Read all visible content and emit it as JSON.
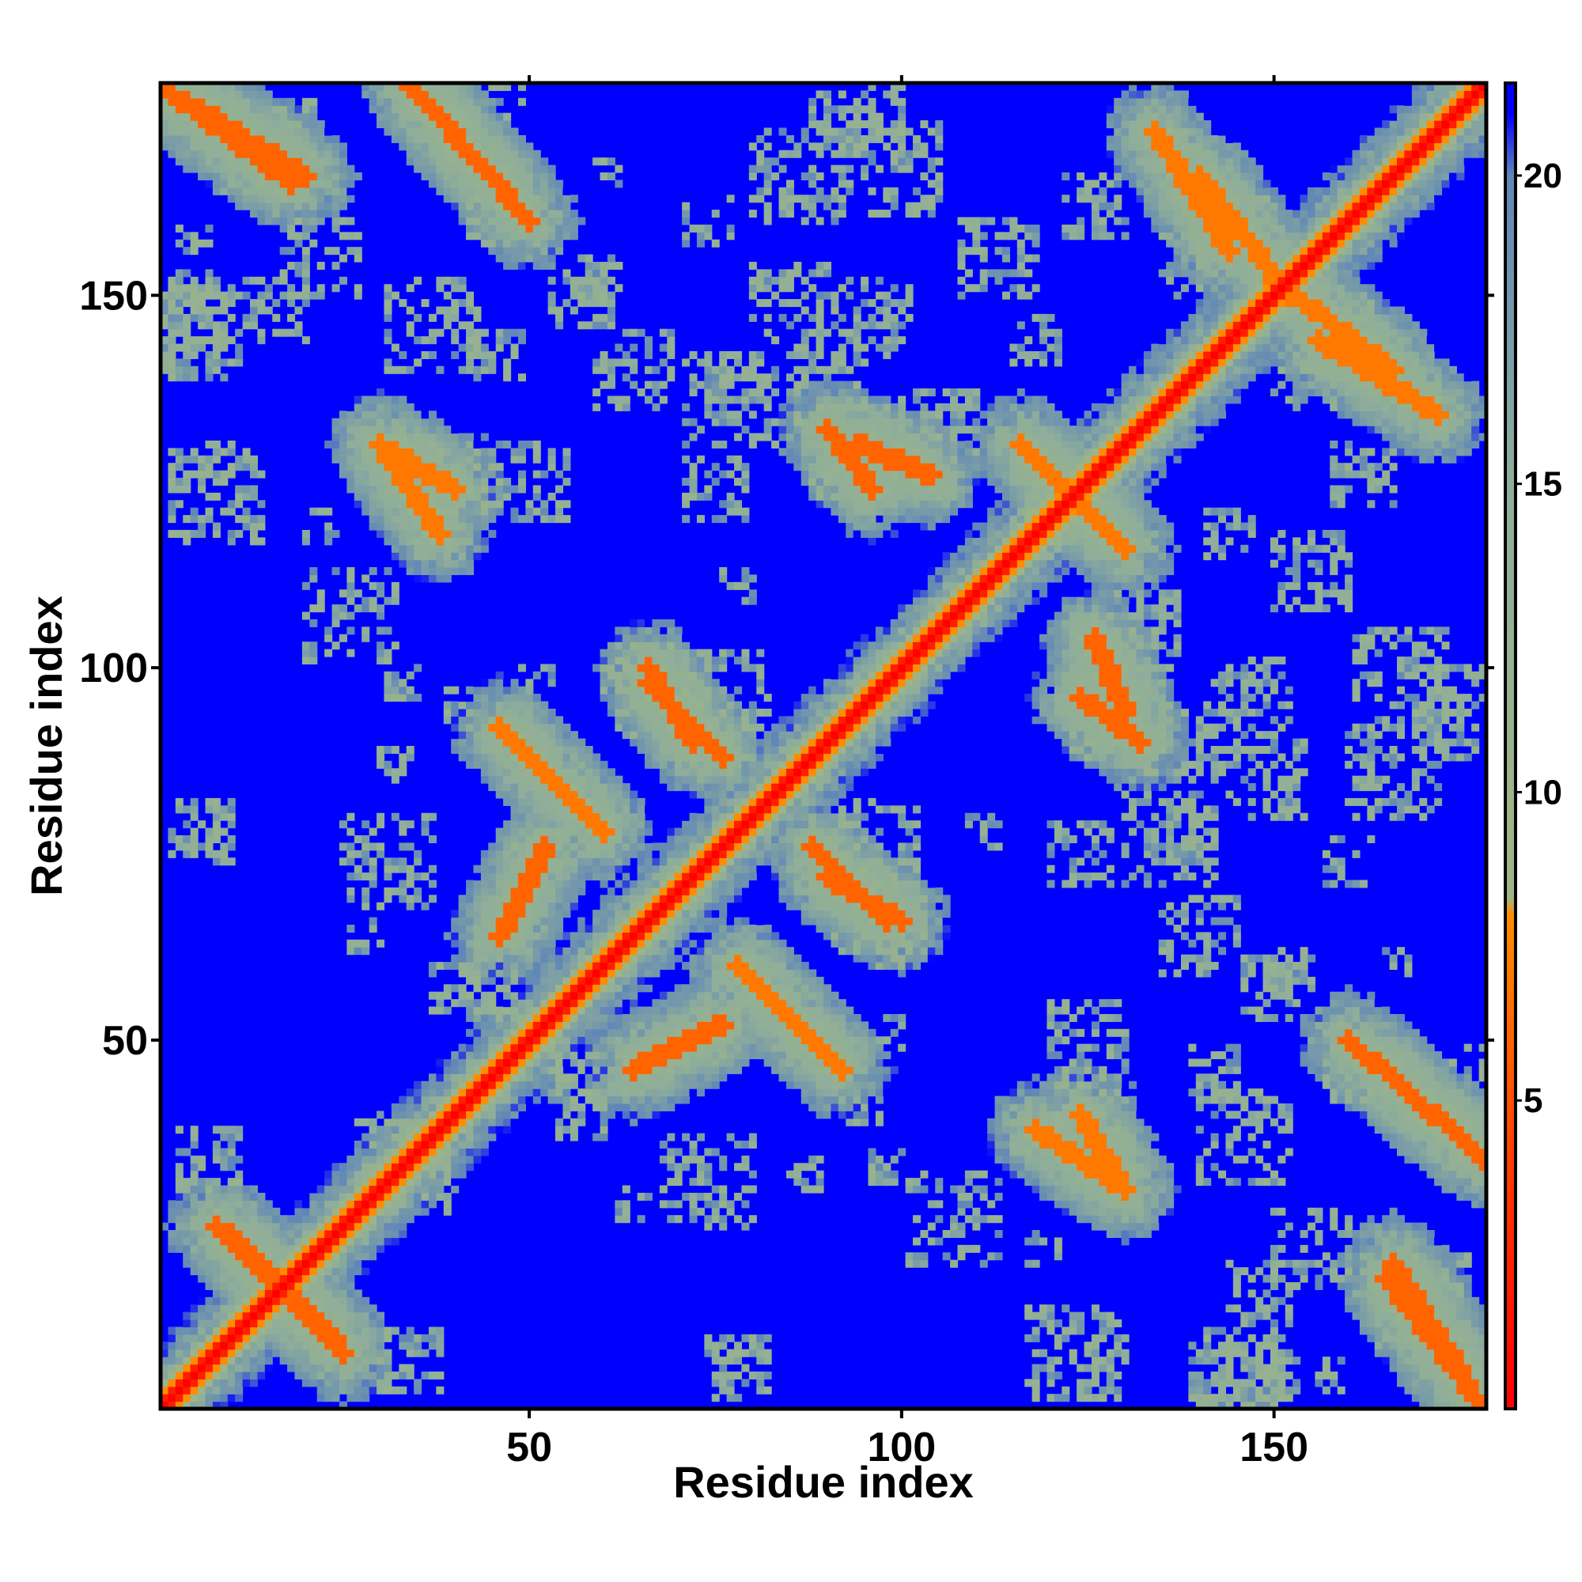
{
  "chart_data": {
    "type": "heatmap",
    "title": "",
    "xlabel": "Residue index",
    "ylabel": "Residue index",
    "n_residues": 178,
    "xlim": [
      1,
      178
    ],
    "ylim": [
      1,
      178
    ],
    "x_ticks": [
      50,
      100,
      150
    ],
    "y_ticks": [
      50,
      100,
      150
    ],
    "colorbar": {
      "range": [
        0,
        21.5
      ],
      "ticks": [
        5,
        10,
        15,
        20
      ],
      "colors": [
        {
          "at": 0,
          "color": "#ff0000"
        },
        {
          "at": 4,
          "color": "#ff3c00"
        },
        {
          "at": 8,
          "color": "#ff8c00"
        },
        {
          "at": 8.3,
          "color": "#9fb586"
        },
        {
          "at": 15,
          "color": "#8fae9a"
        },
        {
          "at": 20,
          "color": "#5f86b8"
        },
        {
          "at": 21,
          "color": "#0000ff"
        }
      ]
    },
    "background_value": 21.5,
    "diagonal_value": 0,
    "structure_features": [
      {
        "kind": "band",
        "i_range": [
          1,
          18
        ],
        "j_range": [
          178,
          165
        ],
        "value": 6
      },
      {
        "kind": "band",
        "i_range": [
          34,
          46
        ],
        "j_range": [
          178,
          165
        ],
        "value": 6
      },
      {
        "kind": "band",
        "i_range": [
          10,
          25
        ],
        "j_range": [
          24,
          8
        ],
        "value": 6
      },
      {
        "kind": "band",
        "i_range": [
          46,
          60
        ],
        "j_range": [
          92,
          78
        ],
        "value": 7
      },
      {
        "kind": "band",
        "i_range": [
          66,
          76
        ],
        "j_range": [
          98,
          88
        ],
        "value": 6
      },
      {
        "kind": "band",
        "i_range": [
          64,
          76
        ],
        "j_range": [
          46,
          52
        ],
        "value": 6
      },
      {
        "kind": "band",
        "i_range": [
          90,
          100
        ],
        "j_range": [
          72,
          66
        ],
        "value": 6
      },
      {
        "kind": "band",
        "i_range": [
          94,
          104
        ],
        "j_range": [
          130,
          126
        ],
        "value": 6
      },
      {
        "kind": "band",
        "i_range": [
          124,
          132
        ],
        "j_range": [
          96,
          90
        ],
        "value": 6
      },
      {
        "kind": "band",
        "i_range": [
          160,
          176
        ],
        "j_range": [
          50,
          36
        ],
        "value": 6
      },
      {
        "kind": "band",
        "i_range": [
          166,
          176
        ],
        "j_range": [
          20,
          4
        ],
        "value": 6
      },
      {
        "kind": "band",
        "i_range": [
          134,
          144
        ],
        "j_range": [
          172,
          156
        ],
        "value": 7
      },
      {
        "kind": "band",
        "i_range": [
          150,
          166
        ],
        "j_range": [
          152,
          140
        ],
        "value": 7
      },
      {
        "kind": "band",
        "i_range": [
          116,
          128
        ],
        "j_range": [
          130,
          118
        ],
        "value": 7
      },
      {
        "kind": "band",
        "i_range": [
          30,
          40
        ],
        "j_range": [
          130,
          124
        ],
        "value": 7
      },
      {
        "kind": "band",
        "i_range": [
          118,
          130
        ],
        "j_range": [
          38,
          30
        ],
        "value": 7
      }
    ]
  }
}
